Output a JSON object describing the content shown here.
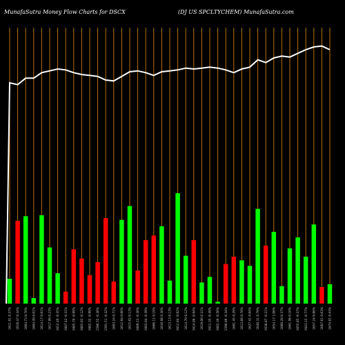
{
  "header": {
    "left": "MunafaSutra  Money Flow  Charts for DSCX",
    "right": "(DJ US SPCLTYCHEM) MunafaSutra.com"
  },
  "colors": {
    "background": "#000000",
    "up": "#00ff00",
    "down": "#ff0000",
    "grid": "#b8720b",
    "line": "#ffffff",
    "label": "#cccccc"
  },
  "chart_data": {
    "type": "bar",
    "grid": true,
    "categories": [
      "1611.01 0.37%",
      "1616.47 0.34%",
      "1604.73 0.70%",
      "1604.49 0.01%",
      "1614.17 0.61%",
      "1617.80 0.23%",
      "1612.40 -0.35%",
      "1607.42 -0.31%",
      "1605.70 -0.09%",
      "1603.83 -0.12%",
      "1602.32 -0.09%",
      "1596.55 -0.36%",
      "1591.51 -0.32%",
      "1603.24 0.71%",
      "1612.94 0.60%",
      "1615.02 0.13%",
      "1609.23 -0.36%",
      "1603.04 -0.39%",
      "1606.11 0.19%",
      "1610.98 0.30%",
      "1613.13 0.13%",
      "1612.84 -0.02%",
      "1614.70 0.12%",
      "1614.06 -0.04%",
      "1619.00 0.31%",
      "1611.35 -0.49%",
      "1602.30 -0.56%",
      "1596.89 -0.34%",
      "1601.45 0.29%",
      "1613.88 0.78%",
      "1627.41 0.84%",
      "1640.31 0.79%",
      "1636.87 -0.21%",
      "1654.17 1.06%",
      "1660.28 0.37%",
      "1661.96 0.10%",
      "1655.85 -0.37%",
      "1643.15 -0.77%",
      "1657.24 0.86%",
      "1667.61 0.63%",
      "1674.81 0.43%"
    ],
    "series": [
      {
        "values": [
          27,
          90,
          95,
          6,
          96,
          61,
          33,
          13,
          59,
          49,
          31,
          45,
          93,
          24,
          91,
          106,
          36,
          69,
          74,
          84,
          25,
          120,
          52,
          69,
          23,
          29,
          2,
          43,
          51,
          47,
          41,
          103,
          63,
          78,
          19,
          60,
          72,
          51,
          86,
          18,
          21
        ],
        "direction": [
          "up",
          "down",
          "up",
          "up",
          "up",
          "up",
          "up",
          "down",
          "down",
          "down",
          "down",
          "down",
          "down",
          "down",
          "up",
          "up",
          "down",
          "down",
          "down",
          "up",
          "up",
          "up",
          "up",
          "down",
          "up",
          "up",
          "up",
          "down",
          "down",
          "up",
          "up",
          "up",
          "down",
          "up",
          "up",
          "up",
          "up",
          "up",
          "up",
          "down",
          "up"
        ]
      },
      {
        "values": [
          240,
          238,
          245,
          245,
          251,
          253,
          255,
          254,
          251,
          249,
          248,
          247,
          243,
          242,
          247,
          252,
          253,
          251,
          248,
          252,
          253,
          254,
          256,
          255,
          256,
          257,
          256,
          254,
          251,
          255,
          257,
          265,
          262,
          267,
          269,
          268,
          272,
          276,
          279,
          280,
          276
        ]
      }
    ],
    "ylim": [
      0,
      300
    ]
  }
}
